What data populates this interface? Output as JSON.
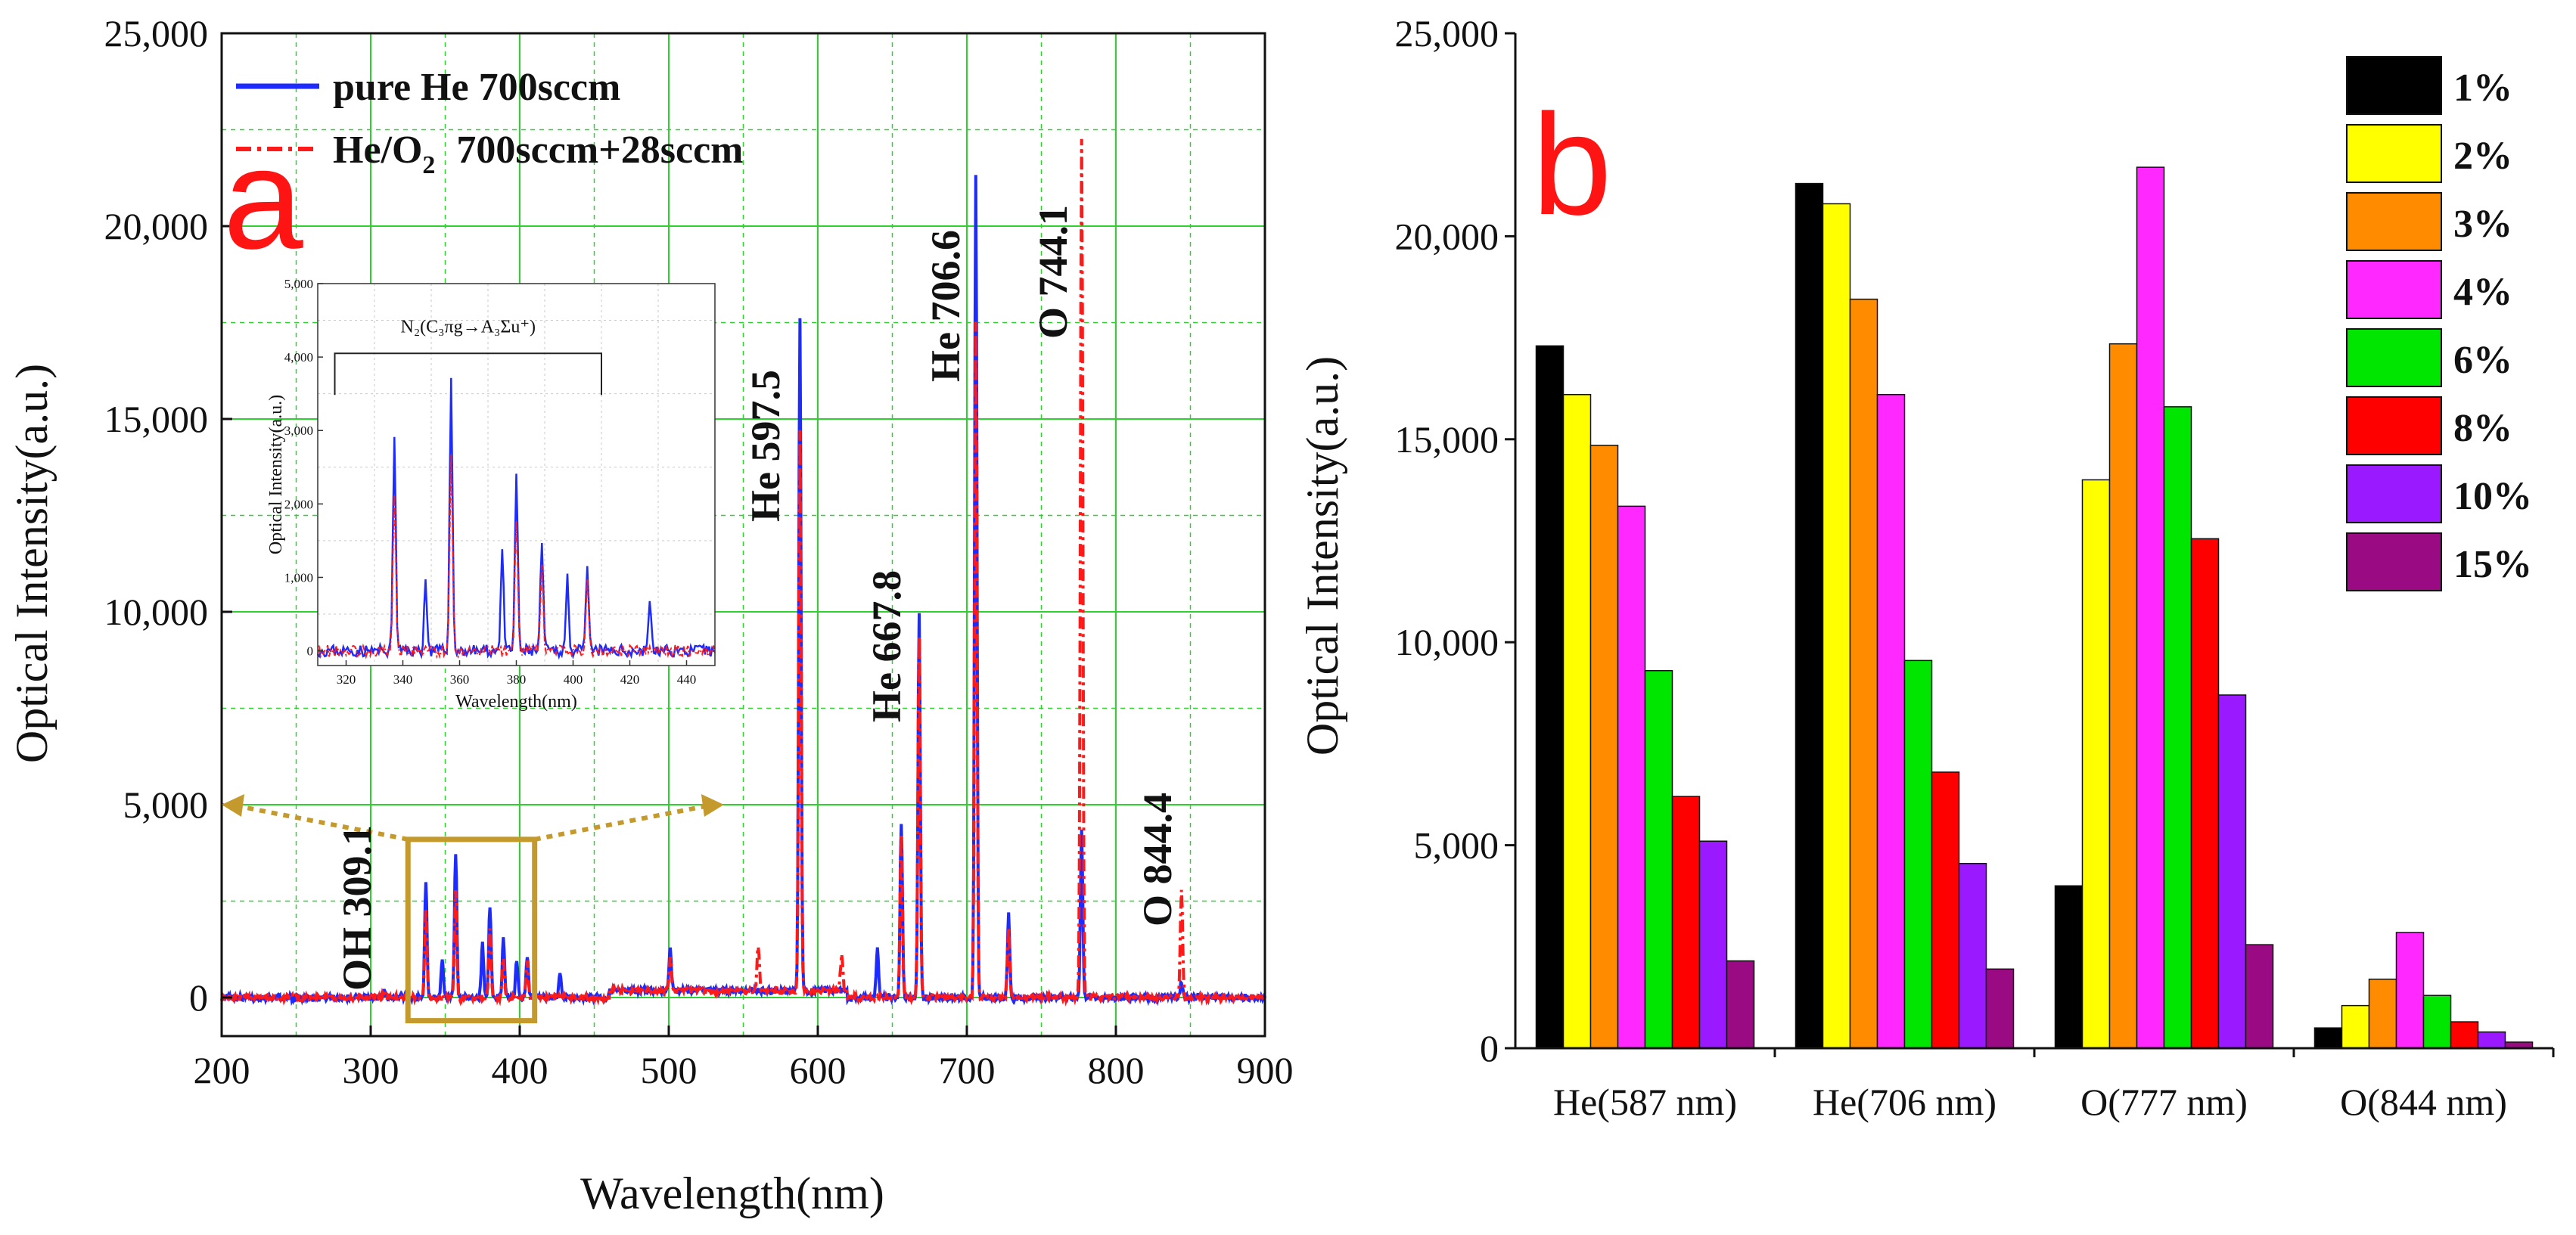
{
  "panel_a": {
    "panel_label": "a",
    "legend": {
      "pure_he": "pure He 700sccm",
      "he_o2_prefix": "He/O",
      "he_o2_sub": "2",
      "he_o2_suffix": "700sccm+28sccm"
    },
    "peak_labels": {
      "oh": "OH 309.1",
      "he5975": "He  597.5",
      "he6678": "He  667.8",
      "he7066": "He  706.6",
      "o7441": "O  744.1",
      "o8444": "O  844.4"
    },
    "inset": {
      "annotation": "N₂(C₃πg→A₃Σu⁺)",
      "xlabel": "Wavelength(nm)",
      "ylabel": "Optical Intensity(a.u.)"
    }
  },
  "panel_b": {
    "panel_label": "b"
  },
  "colors": {
    "blue": "#1d2bff",
    "red": "#ff1a1a",
    "grid": "#2ed12e",
    "zoom_box": "#c59a2d"
  },
  "chart_data": [
    {
      "type": "line",
      "title": "",
      "xlabel": "Wavelength(nm)",
      "ylabel": "Optical Intensity(a.u.)",
      "xlim": [
        200,
        900
      ],
      "ylim": [
        -1000,
        25000
      ],
      "x_ticks": [
        200,
        300,
        400,
        500,
        600,
        700,
        800,
        900
      ],
      "y_ticks": [
        0,
        5000,
        10000,
        15000,
        20000,
        25000
      ],
      "x_tick_labels": [
        "200",
        "300",
        "400",
        "500",
        "600",
        "700",
        "800",
        "900"
      ],
      "y_tick_labels": [
        "0",
        "5,000",
        "10,000",
        "15,000",
        "20,000",
        "25,000"
      ],
      "baseline": 0,
      "series": [
        {
          "name": "pure He 700sccm",
          "color": "#1d2bff",
          "peaks": [
            {
              "x": 309,
              "y": 200
            },
            {
              "x": 337,
              "y": 2950
            },
            {
              "x": 348,
              "y": 950
            },
            {
              "x": 357,
              "y": 3700
            },
            {
              "x": 375,
              "y": 1400
            },
            {
              "x": 380,
              "y": 2400
            },
            {
              "x": 389,
              "y": 1500
            },
            {
              "x": 398,
              "y": 1000
            },
            {
              "x": 405,
              "y": 1100
            },
            {
              "x": 427,
              "y": 700
            },
            {
              "x": 501,
              "y": 1100
            },
            {
              "x": 588,
              "y": 17400
            },
            {
              "x": 640,
              "y": 1300
            },
            {
              "x": 656,
              "y": 4500
            },
            {
              "x": 668,
              "y": 9900
            },
            {
              "x": 706,
              "y": 21300
            },
            {
              "x": 728,
              "y": 2150
            },
            {
              "x": 777,
              "y": 4300
            },
            {
              "x": 844,
              "y": 400
            }
          ]
        },
        {
          "name": "He/O2  700sccm+28sccm",
          "color": "#ff1a1a",
          "peaks": [
            {
              "x": 309,
              "y": 150
            },
            {
              "x": 337,
              "y": 2200
            },
            {
              "x": 357,
              "y": 2700
            },
            {
              "x": 380,
              "y": 1800
            },
            {
              "x": 389,
              "y": 1100
            },
            {
              "x": 405,
              "y": 900
            },
            {
              "x": 501,
              "y": 800
            },
            {
              "x": 560,
              "y": 1200
            },
            {
              "x": 588,
              "y": 14500
            },
            {
              "x": 616,
              "y": 900
            },
            {
              "x": 656,
              "y": 4200
            },
            {
              "x": 668,
              "y": 9400
            },
            {
              "x": 706,
              "y": 17500
            },
            {
              "x": 728,
              "y": 1800
            },
            {
              "x": 777,
              "y": 22300
            },
            {
              "x": 844,
              "y": 2800
            }
          ]
        }
      ],
      "inset": {
        "xlim": [
          310,
          450
        ],
        "ylim": [
          -200,
          5000
        ],
        "x_ticks": [
          320,
          340,
          360,
          380,
          400,
          420,
          440
        ],
        "x_tick_labels": [
          "320",
          "340",
          "360",
          "380",
          "400",
          "420",
          "440"
        ],
        "y_ticks": [
          0,
          1000,
          2000,
          3000,
          4000,
          5000
        ],
        "y_tick_labels": [
          "0",
          "1,000",
          "2,000",
          "3,000",
          "4,000",
          "5,000"
        ],
        "bracket_range": [
          316,
          410
        ],
        "bracket_level": 4050
      },
      "zoom_box": {
        "x_range": [
          325,
          410
        ],
        "y_range": [
          -600,
          4100
        ]
      }
    },
    {
      "type": "bar",
      "title": "",
      "xlabel": "",
      "ylabel": "Optical Intensity(a.u.)",
      "ylim": [
        0,
        25000
      ],
      "y_ticks": [
        0,
        5000,
        10000,
        15000,
        20000,
        25000
      ],
      "y_tick_labels": [
        "0",
        "5,000",
        "10,000",
        "15,000",
        "20,000",
        "25,000"
      ],
      "categories": [
        "He(587 nm)",
        "He(706 nm)",
        "O(777 nm)",
        "O(844 nm)"
      ],
      "series": [
        {
          "name": "1%",
          "color": "#000000",
          "values": [
            17300,
            21300,
            4000,
            500
          ]
        },
        {
          "name": "2%",
          "color": "#ffff00",
          "values": [
            16100,
            20800,
            14000,
            1050
          ]
        },
        {
          "name": "3%",
          "color": "#ff8c00",
          "values": [
            14850,
            18450,
            17350,
            1700
          ]
        },
        {
          "name": "4%",
          "color": "#ff29ff",
          "values": [
            13350,
            16100,
            21700,
            2850
          ]
        },
        {
          "name": "6%",
          "color": "#00e600",
          "values": [
            9300,
            9550,
            15800,
            1300
          ]
        },
        {
          "name": "8%",
          "color": "#ff0000",
          "values": [
            6200,
            6800,
            12550,
            650
          ]
        },
        {
          "name": "10%",
          "color": "#9b19ff",
          "values": [
            5100,
            4550,
            8700,
            400
          ]
        },
        {
          "name": "15%",
          "color": "#9a0a82",
          "values": [
            2150,
            1950,
            2550,
            150
          ]
        }
      ]
    }
  ]
}
